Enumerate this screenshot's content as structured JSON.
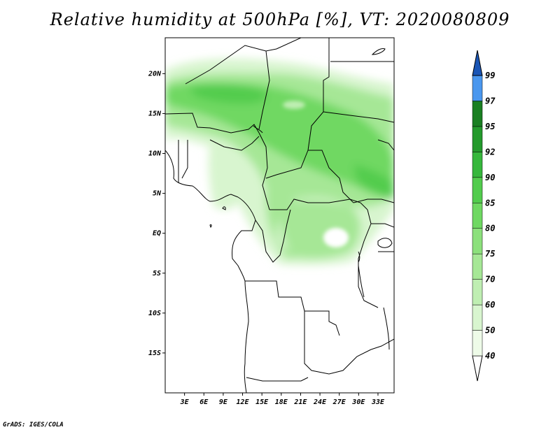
{
  "title": "Relative humidity at 500hPa [%], VT: 2020080809",
  "credit": "GrADS: IGES/COLA",
  "map": {
    "lon_range": [
      0,
      35.5
    ],
    "lat_range": [
      -20,
      24.5
    ],
    "lon_labels": [
      "3E",
      "6E",
      "9E",
      "12E",
      "15E",
      "18E",
      "21E",
      "24E",
      "27E",
      "30E",
      "33E"
    ],
    "lon_values": [
      3,
      6,
      9,
      12,
      15,
      18,
      21,
      24,
      27,
      30,
      33
    ],
    "lat_labels": [
      "20N",
      "15N",
      "10N",
      "5N",
      "EQ",
      "5S",
      "10S",
      "15S"
    ],
    "lat_values": [
      20,
      15,
      10,
      5,
      0,
      -5,
      -10,
      -15
    ]
  },
  "colorbar": {
    "labels": [
      "40",
      "50",
      "60",
      "70",
      "75",
      "80",
      "85",
      "90",
      "92",
      "95",
      "97",
      "99"
    ],
    "colors": [
      "#eefbe8",
      "#d8f5cf",
      "#bfeeb2",
      "#a6e796",
      "#8ce07c",
      "#6fd862",
      "#52cc4d",
      "#36b73c",
      "#249a2c",
      "#1a7f22",
      "#4a97ee",
      "#2a72d6",
      "#1a55b5"
    ]
  },
  "colors": {
    "border": "#000000",
    "frame": "#000000"
  }
}
